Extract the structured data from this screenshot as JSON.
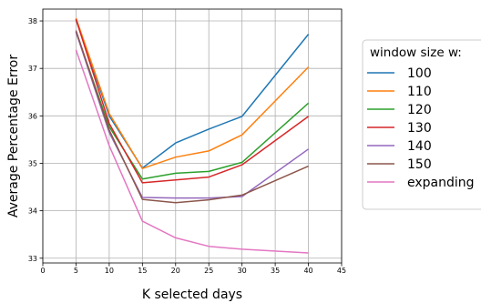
{
  "chart_data": {
    "type": "line",
    "title": "",
    "xlabel": "K selected days",
    "ylabel": "Average Percentage Error",
    "xlim": [
      0,
      45
    ],
    "ylim": [
      32.9,
      38.25
    ],
    "xticks": [
      0,
      5,
      10,
      15,
      20,
      25,
      30,
      35,
      40,
      45
    ],
    "yticks": [
      33,
      34,
      35,
      36,
      37,
      38
    ],
    "grid": true,
    "legend": {
      "title": "window size w:",
      "placement": "right, outside plot"
    },
    "x": [
      5,
      10,
      15,
      20,
      25,
      30,
      40
    ],
    "series": [
      {
        "name": "100",
        "color": "#1f77b4",
        "values": [
          38.03,
          36.0,
          34.9,
          35.43,
          35.72,
          35.99,
          37.72
        ]
      },
      {
        "name": "110",
        "color": "#ff7f0e",
        "values": [
          38.06,
          36.05,
          34.89,
          35.13,
          35.26,
          35.6,
          37.03
        ]
      },
      {
        "name": "120",
        "color": "#2ca02c",
        "values": [
          37.77,
          35.77,
          34.67,
          34.79,
          34.83,
          35.02,
          36.27
        ]
      },
      {
        "name": "130",
        "color": "#d62728",
        "values": [
          38.04,
          35.84,
          34.59,
          34.65,
          34.71,
          34.97,
          35.99
        ]
      },
      {
        "name": "140",
        "color": "#9467bd",
        "values": [
          37.77,
          35.65,
          34.28,
          34.27,
          34.27,
          34.3,
          35.3
        ]
      },
      {
        "name": "150",
        "color": "#8c564b",
        "values": [
          37.8,
          35.7,
          34.24,
          34.17,
          34.23,
          34.33,
          34.94
        ]
      },
      {
        "name": "expanding",
        "color": "#e377c2",
        "values": [
          37.39,
          35.37,
          33.78,
          33.43,
          33.25,
          33.19,
          33.11
        ]
      }
    ]
  }
}
